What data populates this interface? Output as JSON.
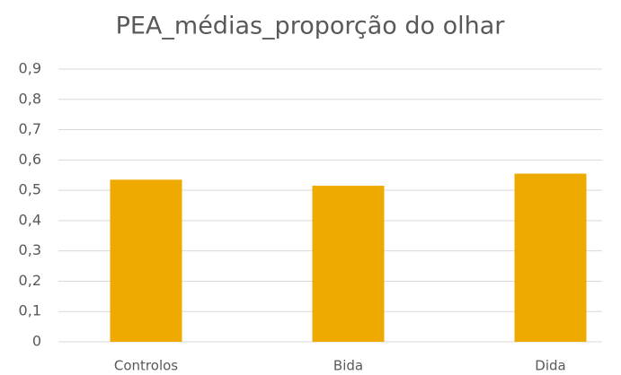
{
  "chart_data": {
    "type": "bar",
    "title": "PEA_médias_proporção do olhar",
    "categories": [
      "Controlos",
      "Bida",
      "Dida"
    ],
    "values": [
      0.535,
      0.515,
      0.555
    ],
    "color": "#eeaa00",
    "ylim": [
      0,
      0.9
    ],
    "yticks": [
      0,
      {
        "value": 0.1,
        "label": "0,1"
      },
      {
        "value": 0.2,
        "label": "0,2"
      },
      {
        "value": 0.3,
        "label": "0,3"
      },
      {
        "value": 0.4,
        "label": "0,4"
      },
      {
        "value": 0.5,
        "label": "0,5"
      },
      {
        "value": 0.6,
        "label": "0,6"
      },
      {
        "value": 0.7,
        "label": "0,7"
      },
      {
        "value": 0.8,
        "label": "0,8"
      },
      {
        "value": 0.9,
        "label": "0,9"
      }
    ],
    "grid": true
  }
}
